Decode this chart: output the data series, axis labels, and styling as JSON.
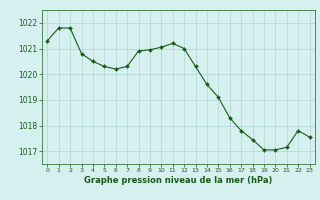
{
  "hours": [
    0,
    1,
    2,
    3,
    4,
    5,
    6,
    7,
    8,
    9,
    10,
    11,
    12,
    13,
    14,
    15,
    16,
    17,
    18,
    19,
    20,
    21,
    22,
    23
  ],
  "pressure": [
    1021.3,
    1021.8,
    1021.8,
    1020.8,
    1020.5,
    1020.3,
    1020.2,
    1020.3,
    1020.9,
    1020.95,
    1021.05,
    1021.2,
    1021.0,
    1020.3,
    1019.6,
    1019.1,
    1018.3,
    1017.8,
    1017.45,
    1017.05,
    1017.05,
    1017.15,
    1017.8,
    1017.55
  ],
  "line_color": "#1a5c1a",
  "marker_color": "#1a5c1a",
  "bg_color": "#d6f0ef",
  "grid_color": "#b0d4d4",
  "xlabel": "Graphe pression niveau de la mer (hPa)",
  "xlabel_color": "#1a5c1a",
  "tick_color": "#1a5c1a",
  "ylim": [
    1016.5,
    1022.5
  ],
  "yticks": [
    1017,
    1018,
    1019,
    1020,
    1021,
    1022
  ],
  "xticks": [
    0,
    1,
    2,
    3,
    4,
    5,
    6,
    7,
    8,
    9,
    10,
    11,
    12,
    13,
    14,
    15,
    16,
    17,
    18,
    19,
    20,
    21,
    22,
    23
  ]
}
